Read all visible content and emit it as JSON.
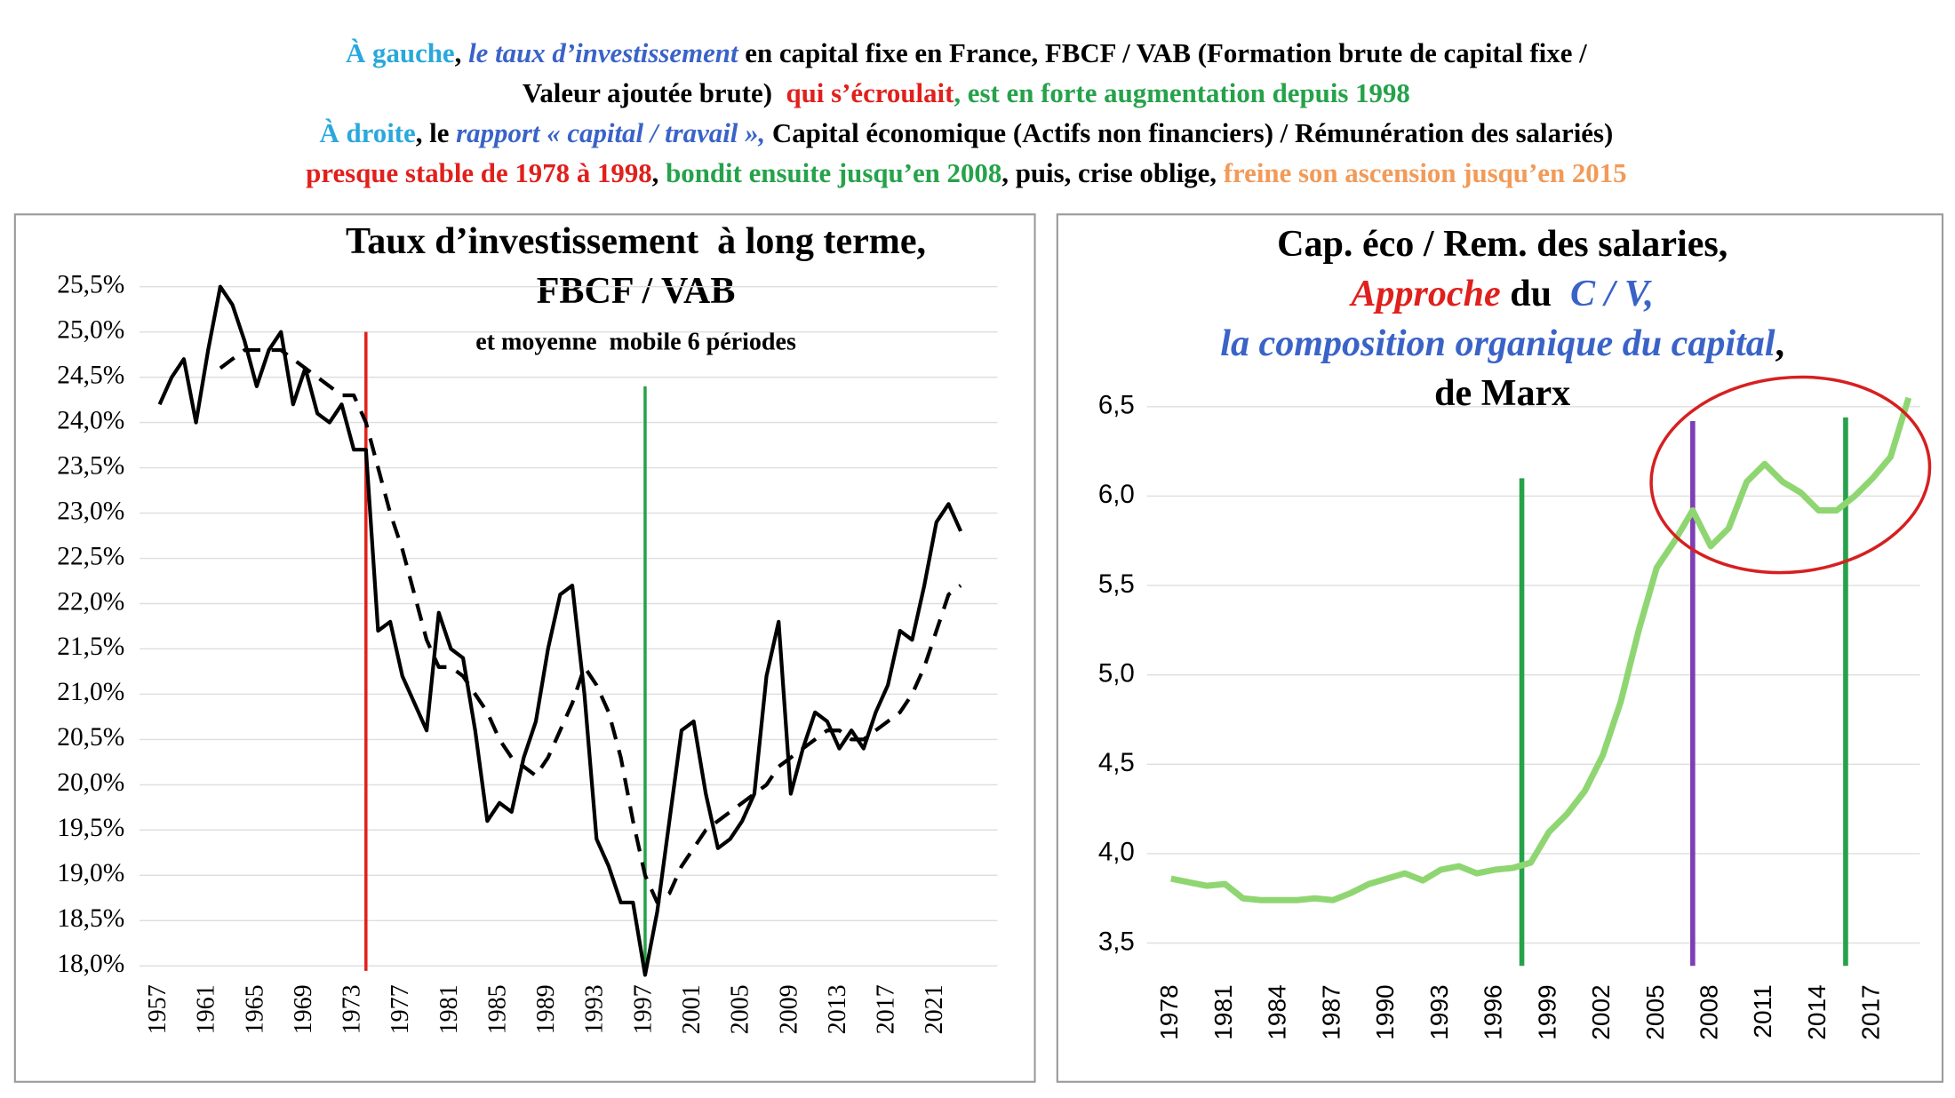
{
  "header": {
    "lines": [
      [
        {
          "text": "À gauche",
          "color": "#29a8dc",
          "italic": false
        },
        {
          "text": ", ",
          "color": "#000000",
          "italic": false
        },
        {
          "text": "le taux d’investissement",
          "color": "#3a63c8",
          "italic": true
        },
        {
          "text": " en capital fixe en France, FBCF / VAB (Formation brute de capital fixe /",
          "color": "#000000",
          "italic": false
        }
      ],
      [
        {
          "text": "Valeur ajoutée brute)  ",
          "color": "#000000",
          "italic": false
        },
        {
          "text": "qui s’écroulait",
          "color": "#e0201c",
          "italic": false
        },
        {
          "text": ", est en forte augmentation depuis 1998",
          "color": "#25a24a",
          "italic": false
        }
      ],
      [
        {
          "text": "À droite",
          "color": "#29a8dc",
          "italic": false
        },
        {
          "text": ", le ",
          "color": "#000000",
          "italic": false
        },
        {
          "text": "rapport « capital / travail »,",
          "color": "#3a63c8",
          "italic": true
        },
        {
          "text": " Capital économique (Actifs non financiers) / Rémunération des salariés)",
          "color": "#000000",
          "italic": false
        }
      ],
      [
        {
          "text": "presque stable de 1978 à 1998",
          "color": "#e0201c",
          "italic": false
        },
        {
          "text": ", ",
          "color": "#000000",
          "italic": false
        },
        {
          "text": "bondit ensuite jusqu’en 2008",
          "color": "#25a24a",
          "italic": false
        },
        {
          "text": ", puis, crise oblige, ",
          "color": "#000000",
          "italic": false
        },
        {
          "text": "freine son ascension jusqu’en 2015",
          "color": "#f29a58",
          "italic": false
        }
      ]
    ]
  },
  "chart_data": [
    {
      "type": "line",
      "title": [
        [
          {
            "text": "Taux d’investissement  à long terme,",
            "color": "#000000",
            "italic": false
          }
        ],
        [
          {
            "text": "FBCF / VAB",
            "color": "#000000",
            "italic": false
          }
        ]
      ],
      "subtitle": "et moyenne  mobile 6 périodes",
      "x": [
        1957,
        1958,
        1959,
        1960,
        1961,
        1962,
        1963,
        1964,
        1965,
        1966,
        1967,
        1968,
        1969,
        1970,
        1971,
        1972,
        1973,
        1974,
        1975,
        1976,
        1977,
        1978,
        1979,
        1980,
        1981,
        1982,
        1983,
        1984,
        1985,
        1986,
        1987,
        1988,
        1989,
        1990,
        1991,
        1992,
        1993,
        1994,
        1995,
        1996,
        1997,
        1998,
        1999,
        2000,
        2001,
        2002,
        2003,
        2004,
        2005,
        2006,
        2007,
        2008,
        2009,
        2010,
        2011,
        2012,
        2013,
        2014,
        2015,
        2016,
        2017,
        2018,
        2019,
        2020,
        2021,
        2022,
        2023
      ],
      "series": [
        {
          "color": "#000000",
          "dash": false,
          "values": [
            24.2,
            24.5,
            24.7,
            24.0,
            24.8,
            25.5,
            25.3,
            24.9,
            24.4,
            24.8,
            25.0,
            24.2,
            24.6,
            24.1,
            24.0,
            24.2,
            23.7,
            23.7,
            21.7,
            21.8,
            21.2,
            20.9,
            20.6,
            21.9,
            21.5,
            21.4,
            20.6,
            19.6,
            19.8,
            19.7,
            20.3,
            20.7,
            21.5,
            22.1,
            22.2,
            21.0,
            19.4,
            19.1,
            18.7,
            18.7,
            17.9,
            18.6,
            19.6,
            20.6,
            20.7,
            19.9,
            19.3,
            19.4,
            19.6,
            19.9,
            21.2,
            21.8,
            19.9,
            20.4,
            20.8,
            20.7,
            20.4,
            20.6,
            20.4,
            20.8,
            21.1,
            21.7,
            21.6,
            22.2,
            22.9,
            23.1,
            22.8
          ]
        },
        {
          "color": "#000000",
          "dash": true,
          "values": [
            null,
            null,
            null,
            null,
            null,
            24.6,
            24.7,
            24.8,
            24.8,
            24.8,
            24.8,
            24.7,
            24.6,
            24.5,
            24.4,
            24.3,
            24.3,
            24.0,
            23.5,
            23.0,
            22.6,
            22.1,
            21.6,
            21.3,
            21.3,
            21.2,
            21.0,
            20.8,
            20.5,
            20.3,
            20.2,
            20.1,
            20.3,
            20.6,
            20.9,
            21.3,
            21.1,
            20.8,
            20.3,
            19.6,
            19.0,
            18.7,
            18.8,
            19.1,
            19.3,
            19.5,
            19.6,
            19.7,
            19.8,
            19.9,
            20.0,
            20.2,
            20.3,
            20.4,
            20.5,
            20.6,
            20.6,
            20.5,
            20.5,
            20.6,
            20.7,
            20.8,
            21.0,
            21.3,
            21.7,
            22.1,
            22.2
          ]
        }
      ],
      "xlim": [
        1957,
        2025
      ],
      "xticks": [
        1957,
        1961,
        1965,
        1969,
        1973,
        1977,
        1981,
        1985,
        1989,
        1993,
        1997,
        2001,
        2005,
        2009,
        2013,
        2017,
        2021
      ],
      "ylim": [
        18,
        25.5
      ],
      "yticks": [
        {
          "value": 18,
          "label": "18,0%"
        },
        {
          "value": 18.5,
          "label": "18,5%"
        },
        {
          "value": 19,
          "label": "19,0%"
        },
        {
          "value": 19.5,
          "label": "19,5%"
        },
        {
          "value": 20,
          "label": "20,0%"
        },
        {
          "value": 20.5,
          "label": "20,5%"
        },
        {
          "value": 21,
          "label": "21,0%"
        },
        {
          "value": 21.5,
          "label": "21,5%"
        },
        {
          "value": 22,
          "label": "22,0%"
        },
        {
          "value": 22.5,
          "label": "22,5%"
        },
        {
          "value": 23,
          "label": "23,0%"
        },
        {
          "value": 23.5,
          "label": "23,5%"
        },
        {
          "value": 24,
          "label": "24,0%"
        },
        {
          "value": 24.5,
          "label": "24,5%"
        },
        {
          "value": 25,
          "label": "25,0%"
        },
        {
          "value": 25.5,
          "label": "25,5%"
        }
      ],
      "grid": true,
      "vlines": [
        {
          "x": 1974,
          "top": 25.0,
          "color": "#e0201c"
        },
        {
          "x": 1997,
          "top": 24.4,
          "color": "#25a24a"
        }
      ]
    },
    {
      "type": "line",
      "title": [
        [
          {
            "text": "Cap. éco / Rem. des salaries,",
            "color": "#000000",
            "italic": false
          }
        ],
        [
          {
            "text": "Approche",
            "color": "#e0201c",
            "italic": true
          },
          {
            "text": " du  ",
            "color": "#000000",
            "italic": false
          },
          {
            "text": "C / V,",
            "color": "#3a63c8",
            "italic": true
          }
        ],
        [
          {
            "text": "la composition organique du capital",
            "color": "#3a63c8",
            "italic": true
          },
          {
            "text": ",",
            "color": "#000000",
            "italic": false
          }
        ],
        [
          {
            "text": "de Marx",
            "color": "#000000",
            "italic": false
          }
        ]
      ],
      "x": [
        1978,
        1979,
        1980,
        1981,
        1982,
        1983,
        1984,
        1985,
        1986,
        1987,
        1988,
        1989,
        1990,
        1991,
        1992,
        1993,
        1994,
        1995,
        1996,
        1997,
        1998,
        1999,
        2000,
        2001,
        2002,
        2003,
        2004,
        2005,
        2006,
        2007,
        2008,
        2009,
        2010,
        2011,
        2012,
        2013,
        2014,
        2015,
        2016,
        2017,
        2018,
        2019
      ],
      "series": [
        {
          "color": "#8fd672",
          "dash": false,
          "values": [
            3.86,
            3.84,
            3.82,
            3.83,
            3.75,
            3.74,
            3.74,
            3.74,
            3.75,
            3.74,
            3.78,
            3.83,
            3.86,
            3.89,
            3.85,
            3.91,
            3.93,
            3.89,
            3.91,
            3.92,
            3.95,
            4.12,
            4.22,
            4.35,
            4.55,
            4.85,
            5.25,
            5.6,
            5.75,
            5.92,
            5.72,
            5.82,
            6.08,
            6.18,
            6.08,
            6.02,
            5.92,
            5.92,
            6.0,
            6.1,
            6.22,
            6.55
          ]
        }
      ],
      "xlim": [
        1977.5,
        2019.5
      ],
      "xticks": [
        1978,
        1981,
        1984,
        1987,
        1990,
        1993,
        1996,
        1999,
        2002,
        2005,
        2008,
        2011,
        2014,
        2017
      ],
      "ylim": [
        3.4,
        6.6
      ],
      "yticks": [
        {
          "value": 3.5,
          "label": "3,5"
        },
        {
          "value": 4,
          "label": "4,0"
        },
        {
          "value": 4.5,
          "label": "4,5"
        },
        {
          "value": 5,
          "label": "5,0"
        },
        {
          "value": 5.5,
          "label": "5,5"
        },
        {
          "value": 6,
          "label": "6,0"
        },
        {
          "value": 6.5,
          "label": "6,5"
        }
      ],
      "grid": true,
      "vlines": [
        {
          "x": 1997.5,
          "top": 6.1,
          "color": "#25a24a"
        },
        {
          "x": 2007,
          "top": 6.42,
          "color": "#7e3fb5"
        },
        {
          "x": 2015.5,
          "top": 6.44,
          "color": "#25a24a"
        }
      ]
    }
  ]
}
